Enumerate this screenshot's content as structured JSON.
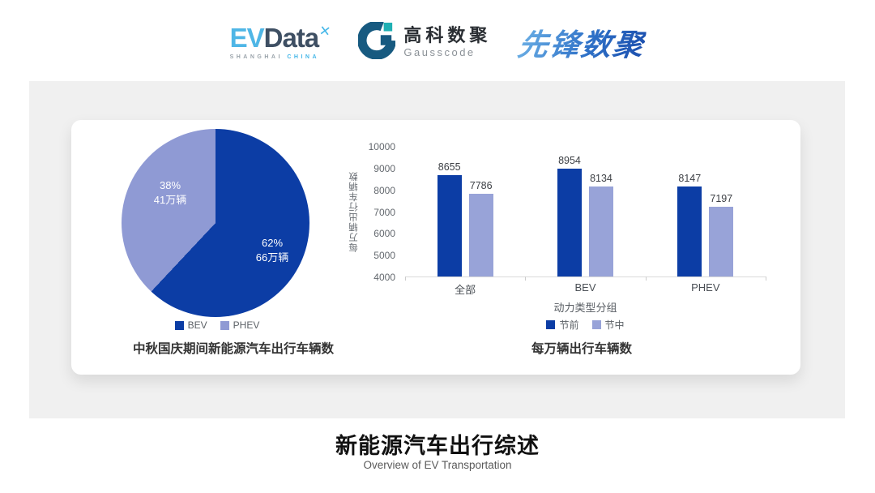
{
  "header": {
    "evdata": {
      "ev": "EV",
      "data": "Data",
      "x_mark": "✕",
      "sub1": "SHANGHAI",
      "sub2": "CHINA"
    },
    "gausscode": {
      "cn": "高科数聚",
      "en": "Gausscode"
    },
    "xianfeng": {
      "text": "先锋数聚"
    }
  },
  "colors": {
    "primary_blue": "#0c3da5",
    "light_periwinkle": "#8f9ad4",
    "bar_light": "#98a3d8",
    "panel_gray": "#f0f0f0",
    "gauss_mark": "#175a80",
    "gauss_accent": "#1fb0b4"
  },
  "chart_data": [
    {
      "type": "pie",
      "title": "中秋国庆期间新能源汽车出行车辆数",
      "slices": [
        {
          "label": "BEV",
          "percent": 62,
          "percent_label": "62%",
          "value_label": "66万辆",
          "color": "#0c3da5"
        },
        {
          "label": "PHEV",
          "percent": 38,
          "percent_label": "38%",
          "value_label": "41万辆",
          "color": "#8f9ad4"
        }
      ],
      "legend_position": "bottom"
    },
    {
      "type": "bar",
      "title": "每万辆出行车辆数",
      "categories": [
        "全部",
        "BEV",
        "PHEV"
      ],
      "series": [
        {
          "name": "节前",
          "color": "#0c3da5",
          "values": [
            8655,
            8954,
            8147
          ]
        },
        {
          "name": "节中",
          "color": "#98a3d8",
          "values": [
            7786,
            8134,
            7197
          ]
        }
      ],
      "xlabel": "动力类型分组",
      "ylabel": "每万辆出行车辆数",
      "ylim": [
        4000,
        10000
      ],
      "ytick_step": 1000,
      "grid": false,
      "legend_position": "bottom"
    }
  ],
  "footer": {
    "title": "新能源汽车出行综述",
    "subtitle": "Overview of EV Transportation"
  }
}
